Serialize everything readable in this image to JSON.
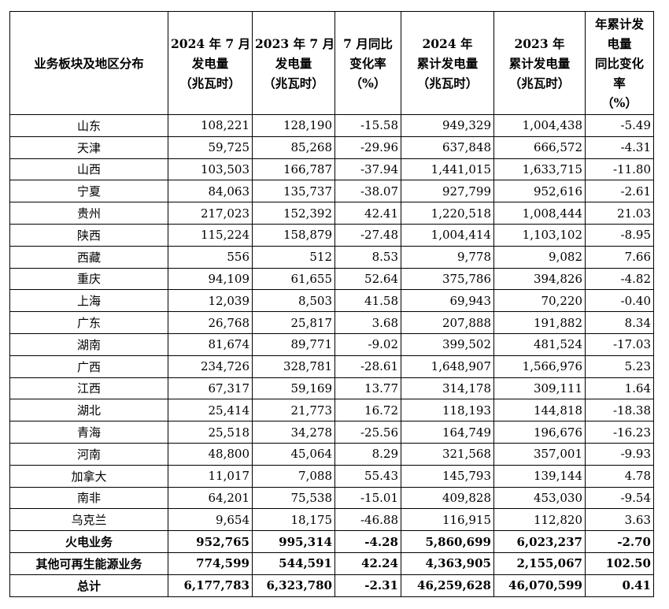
{
  "table": {
    "header": [
      [
        "业务板块及地区分布"
      ],
      [
        "2024 年 7 月",
        "发电量",
        "（兆瓦时）"
      ],
      [
        "2023 年 7 月",
        "发电量",
        "（兆瓦时）"
      ],
      [
        "7 月同比",
        "变化率",
        "（%）"
      ],
      [
        "2024 年",
        "累计发电量",
        "（兆瓦时）"
      ],
      [
        "2023 年",
        "累计发电量",
        "（兆瓦时）"
      ],
      [
        "年累计发",
        "电量",
        "同比变化",
        "率",
        "（%）"
      ]
    ],
    "rows": [
      [
        "山东",
        "108,221",
        "128,190",
        "-15.58",
        "949,329",
        "1,004,438",
        "-5.49"
      ],
      [
        "天津",
        "59,725",
        "85,268",
        "-29.96",
        "637,848",
        "666,572",
        "-4.31"
      ],
      [
        "山西",
        "103,503",
        "166,787",
        "-37.94",
        "1,441,015",
        "1,633,715",
        "-11.80"
      ],
      [
        "宁夏",
        "84,063",
        "135,737",
        "-38.07",
        "927,799",
        "952,616",
        "-2.61"
      ],
      [
        "贵州",
        "217,023",
        "152,392",
        "42.41",
        "1,220,518",
        "1,008,444",
        "21.03"
      ],
      [
        "陕西",
        "115,224",
        "158,879",
        "-27.48",
        "1,004,414",
        "1,103,102",
        "-8.95"
      ],
      [
        "西藏",
        "556",
        "512",
        "8.53",
        "9,778",
        "9,082",
        "7.66"
      ],
      [
        "重庆",
        "94,109",
        "61,655",
        "52.64",
        "375,786",
        "394,826",
        "-4.82"
      ],
      [
        "上海",
        "12,039",
        "8,503",
        "41.58",
        "69,943",
        "70,220",
        "-0.40"
      ],
      [
        "广东",
        "26,768",
        "25,817",
        "3.68",
        "207,888",
        "191,882",
        "8.34"
      ],
      [
        "湖南",
        "81,674",
        "89,771",
        "-9.02",
        "399,502",
        "481,524",
        "-17.03"
      ],
      [
        "广西",
        "234,726",
        "328,781",
        "-28.61",
        "1,648,907",
        "1,566,976",
        "5.23"
      ],
      [
        "江西",
        "67,317",
        "59,169",
        "13.77",
        "314,178",
        "309,111",
        "1.64"
      ],
      [
        "湖北",
        "25,414",
        "21,773",
        "16.72",
        "118,193",
        "144,818",
        "-18.38"
      ],
      [
        "青海",
        "25,518",
        "34,278",
        "-25.56",
        "164,749",
        "196,676",
        "-16.23"
      ],
      [
        "河南",
        "48,800",
        "45,064",
        "8.29",
        "321,568",
        "357,001",
        "-9.93"
      ],
      [
        "加拿大",
        "11,017",
        "7,088",
        "55.43",
        "145,793",
        "139,144",
        "4.78"
      ],
      [
        "南非",
        "64,201",
        "75,538",
        "-15.01",
        "409,828",
        "453,030",
        "-9.54"
      ],
      [
        "乌克兰",
        "9,654",
        "18,175",
        "-46.88",
        "116,915",
        "112,820",
        "3.63"
      ],
      [
        "火电业务",
        "952,765",
        "995,314",
        "-4.28",
        "5,860,699",
        "6,023,237",
        "-2.70"
      ],
      [
        "其他可再生能源业务",
        "774,599",
        "544,591",
        "42.24",
        "4,363,905",
        "2,155,067",
        "102.50"
      ],
      [
        "总计",
        "6,177,783",
        "6,323,780",
        "-2.31",
        "46,259,628",
        "46,070,599",
        "0.41"
      ]
    ]
  }
}
